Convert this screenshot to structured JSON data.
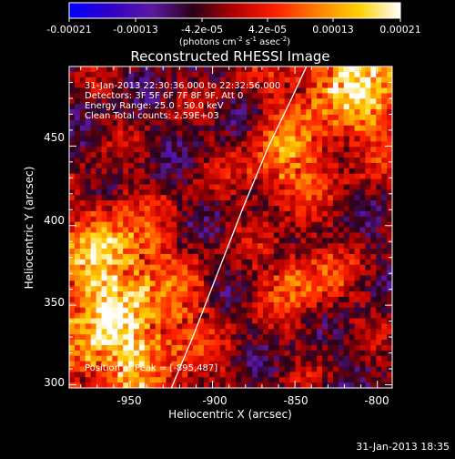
{
  "colorbar": {
    "ticks": [
      "-0.00021",
      "-0.00013",
      "-4.2e-05",
      "4.2e-05",
      "0.00013",
      "0.00021"
    ],
    "units_main": "(photons cm",
    "units_sup1": "-2",
    "units_mid1": " s",
    "units_sup2": "-1",
    "units_mid2": " asec",
    "units_sup3": "-2",
    "units_end": ")"
  },
  "chart_data": {
    "type": "heatmap",
    "title": "Reconstructed RHESSI Image",
    "xlabel": "Heliocentric X (arcsec)",
    "ylabel": "Heliocentric Y (arcsec)",
    "xlim": [
      -987,
      -791
    ],
    "ylim": [
      298,
      500
    ],
    "xticks": [
      "-950",
      "-900",
      "-850",
      "-800"
    ],
    "yticks": [
      "300",
      "350",
      "400",
      "450"
    ],
    "xtick_values": [
      -950,
      -900,
      -850,
      -800
    ],
    "ytick_values": [
      300,
      350,
      400,
      450
    ],
    "zlim": [
      -0.00021,
      0.00021
    ],
    "colormap": [
      "#0000ff",
      "#3000c8",
      "#5a1aa0",
      "#2a0018",
      "#b40000",
      "#ff2000",
      "#ff8000",
      "#ffd000",
      "#ffffff"
    ],
    "annotations": [
      "31-Jan-2013 22:30:36.000 to 22:32:56.000",
      "Detectors: 3F 5F 6F 7F 8F 9F, Att 0",
      "Energy Range: 25.0 - 50.0 keV",
      "Clean    Total counts: 2.59E+03"
    ],
    "peak_label": "Position of Peak = [-895,487]",
    "limb_curve": {
      "x": [
        -925,
        -912,
        -897,
        -882,
        -866,
        -852,
        -843
      ],
      "y": [
        298,
        330,
        370,
        410,
        450,
        480,
        500
      ]
    }
  },
  "footer": {
    "timestamp": "31-Jan-2013 18:35"
  }
}
